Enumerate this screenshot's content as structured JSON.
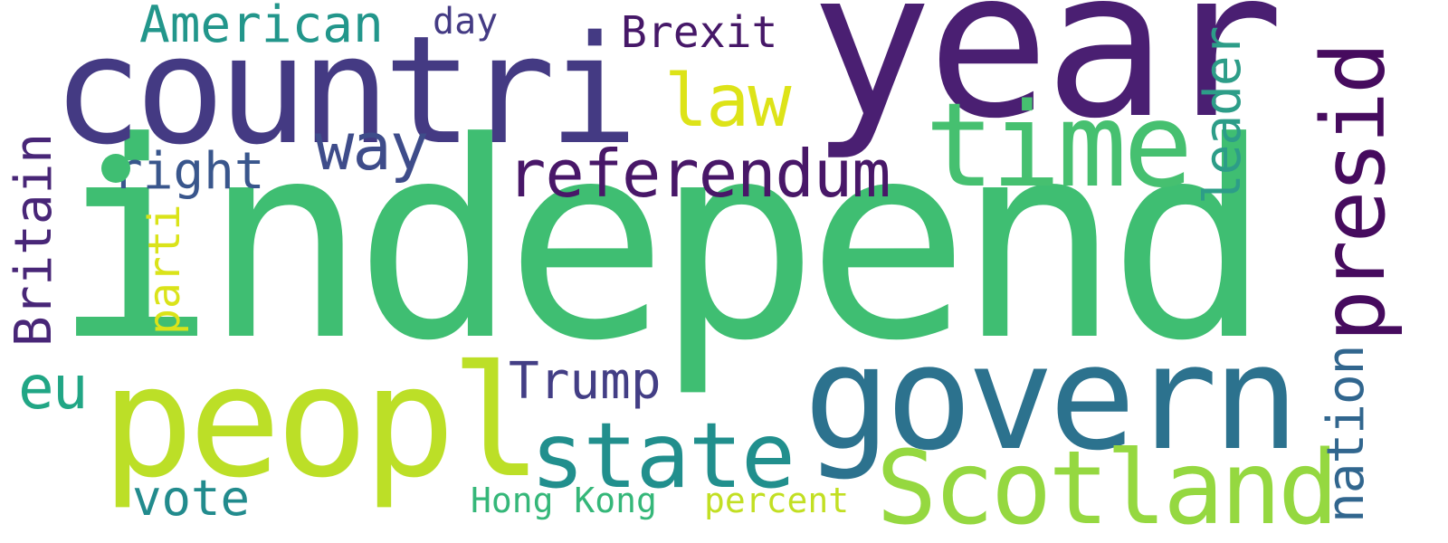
{
  "words": {
    "independ": "independ",
    "year": "year",
    "countri": "countri",
    "govern": "govern",
    "peopl": "peopl",
    "time": "time",
    "scotland": "Scotland",
    "state": "state",
    "referendum": "referendum",
    "presid": "presid",
    "law": "law",
    "way": "way",
    "american": "American",
    "right": "right",
    "britain": "Britain",
    "leader": "leader",
    "nation": "nation",
    "trump": "Trump",
    "brexit": "Brexit",
    "eu": "eu",
    "vote": "vote",
    "parti": "parti",
    "day": "day",
    "hong_kong": "Hong Kong",
    "percent": "percent"
  },
  "colors": {
    "independ": "#3fbe72",
    "year": "#4a1f72",
    "countri": "#443a83",
    "govern": "#2c728e",
    "peopl": "#bcdf27",
    "time": "#46c070",
    "scotland": "#95d840",
    "state": "#218f8d",
    "referendum": "#481768",
    "presid": "#460b5e",
    "law": "#dde318",
    "way": "#3e4c8a",
    "american": "#22968b",
    "right": "#39568c",
    "britain": "#482677",
    "leader": "#2d9d88",
    "nation": "#31668e",
    "trump": "#433e85",
    "brexit": "#461868",
    "eu": "#21a685",
    "vote": "#228b8d",
    "parti": "#dae319",
    "day": "#443b84",
    "hong_kong": "#35b779",
    "percent": "#c2df23"
  }
}
